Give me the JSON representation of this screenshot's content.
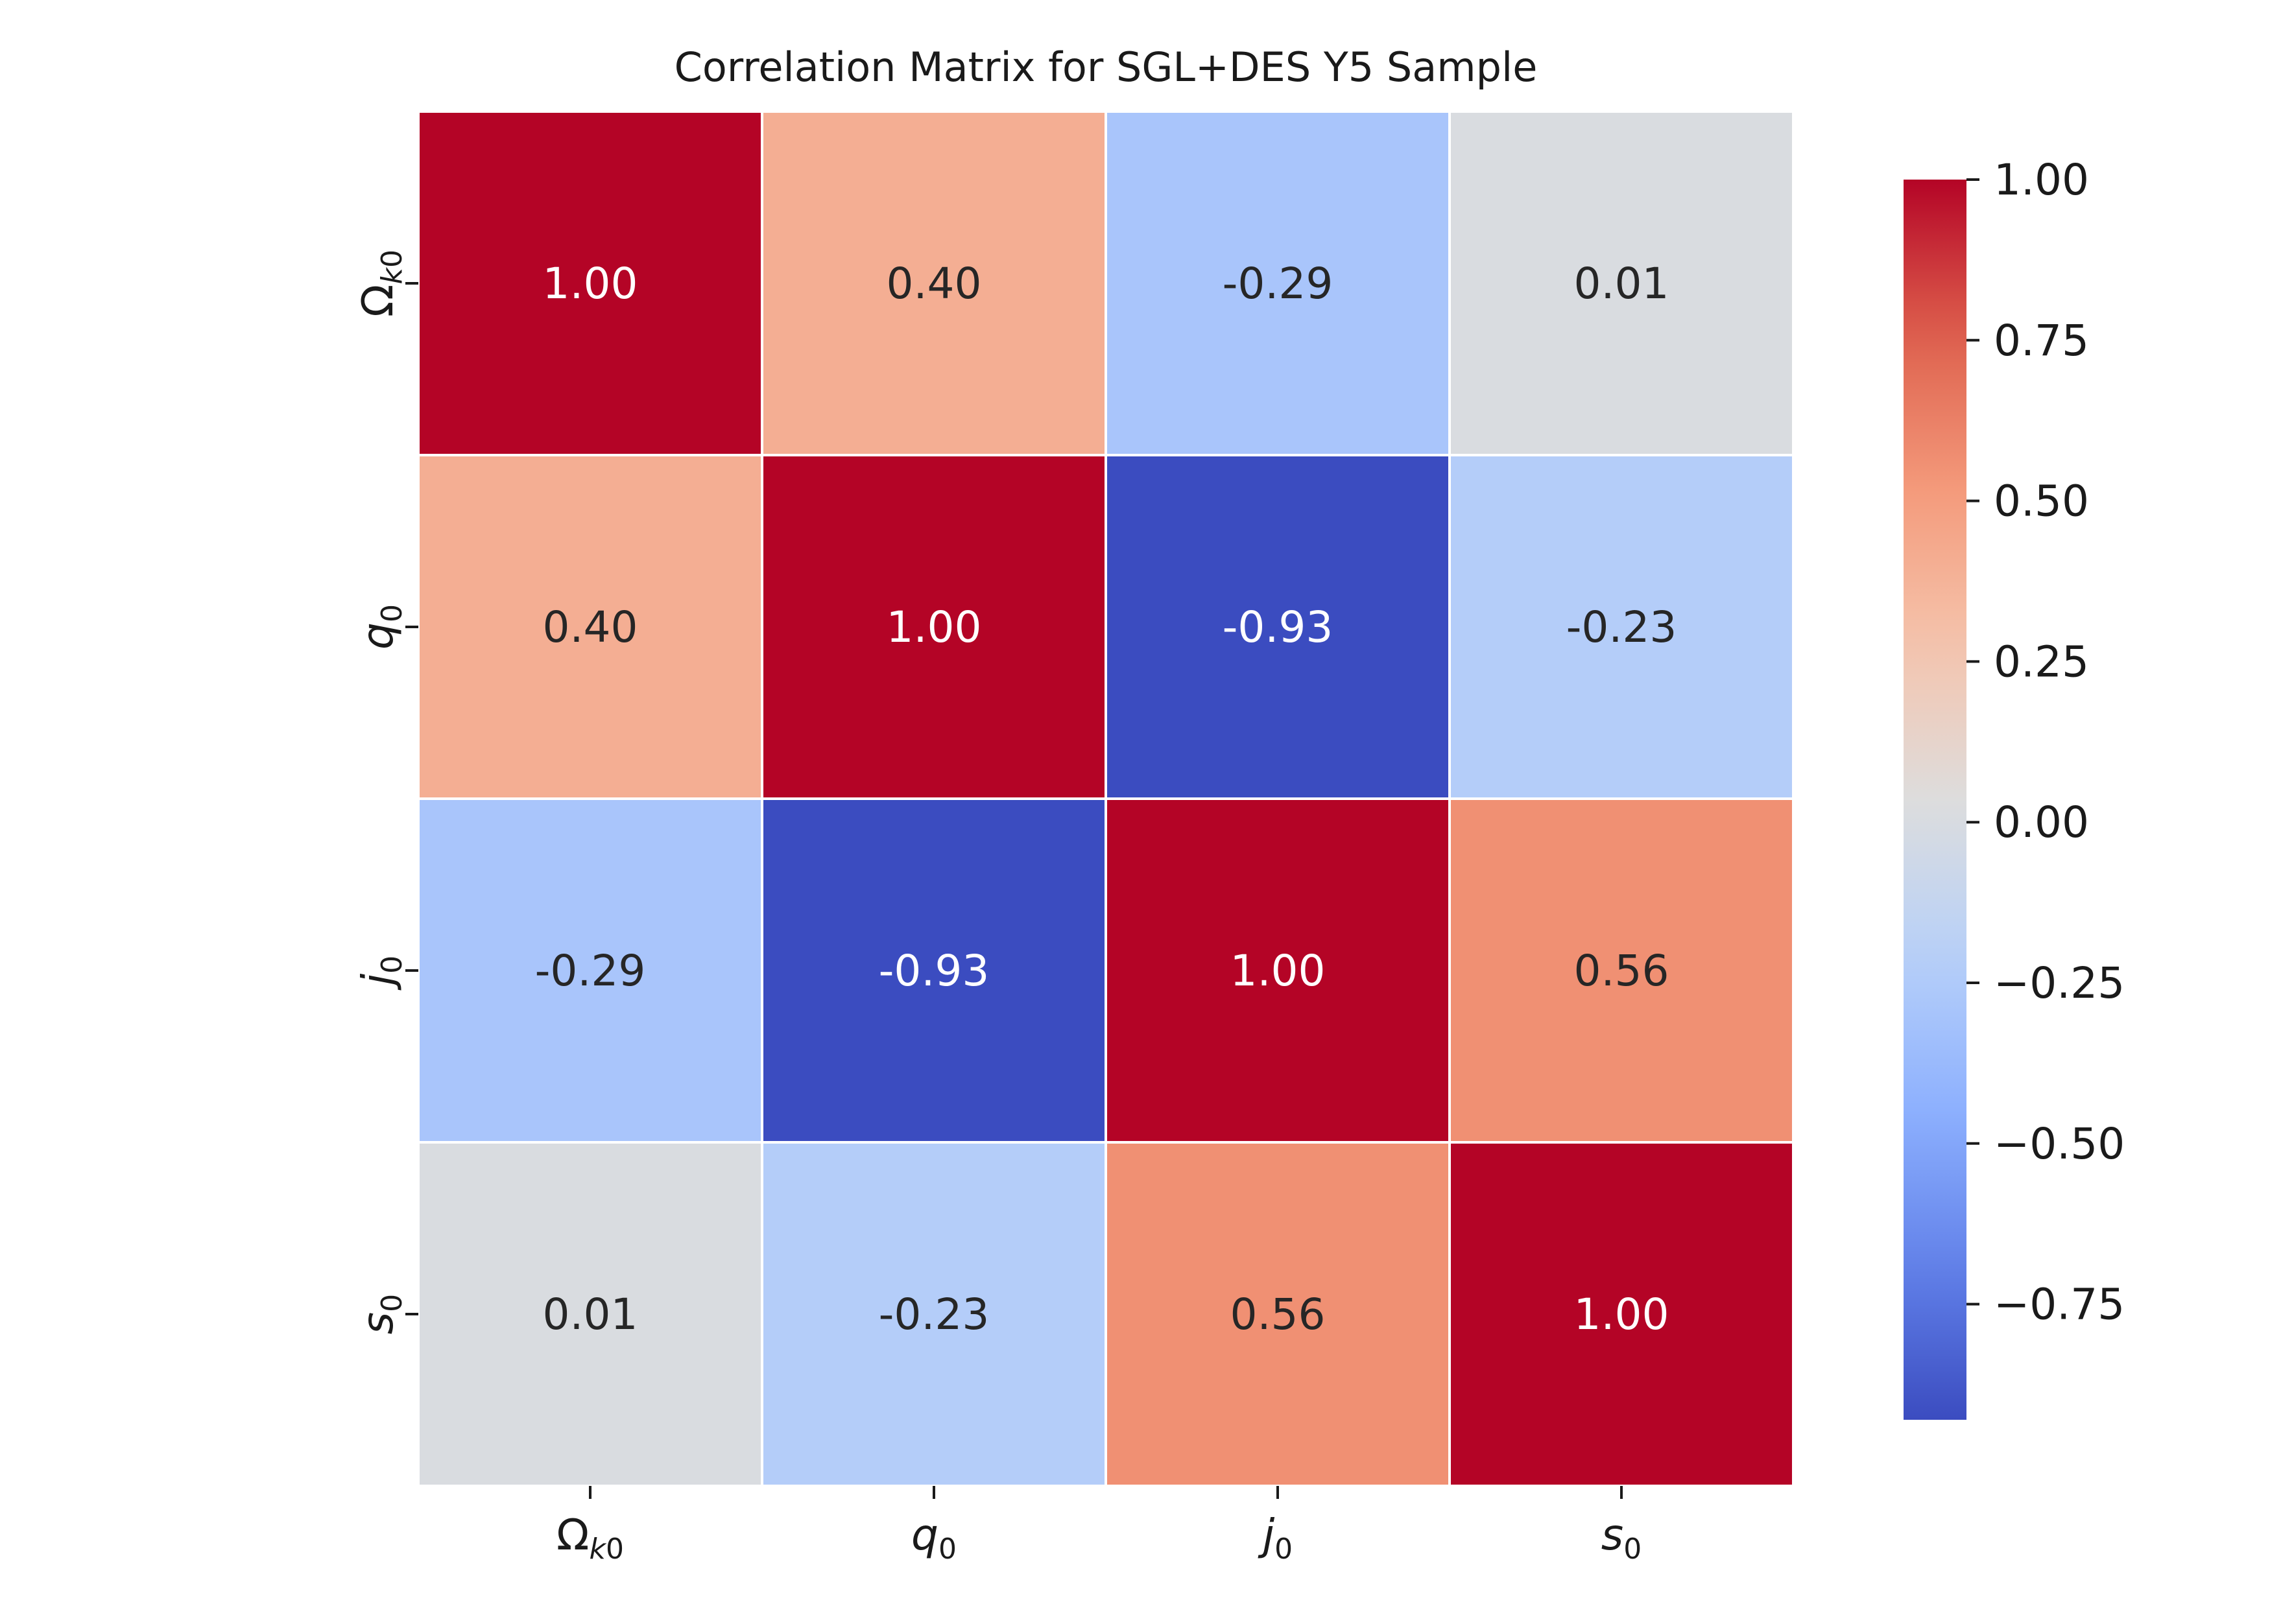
{
  "chart_data": {
    "type": "heatmap",
    "title": "Correlation Matrix for SGL+DES Y5 Sample",
    "xlabel": "",
    "ylabel": "",
    "labels": [
      {
        "base": "Ω",
        "sub": "k0"
      },
      {
        "base": "q",
        "sub": "0"
      },
      {
        "base": "j",
        "sub": "0"
      },
      {
        "base": "s",
        "sub": "0"
      }
    ],
    "matrix": [
      [
        1.0,
        0.4,
        -0.29,
        0.01
      ],
      [
        0.4,
        1.0,
        -0.93,
        -0.23
      ],
      [
        -0.29,
        -0.93,
        1.0,
        0.56
      ],
      [
        0.01,
        -0.23,
        0.56,
        1.0
      ]
    ],
    "cell_labels": [
      [
        "1.00",
        "0.40",
        "-0.29",
        "0.01"
      ],
      [
        "0.40",
        "1.00",
        "-0.93",
        "-0.23"
      ],
      [
        "-0.29",
        "-0.93",
        "1.00",
        "0.56"
      ],
      [
        "0.01",
        "-0.23",
        "0.56",
        "1.00"
      ]
    ],
    "colormap": "coolwarm",
    "vmin": -0.93,
    "vmax": 1.0,
    "colorbar": {
      "location": "right",
      "ticks": [
        1.0,
        0.75,
        0.5,
        0.25,
        0.0,
        -0.25,
        -0.5,
        -0.75
      ],
      "tick_labels": [
        "1.00",
        "0.75",
        "0.50",
        "0.25",
        "0.00",
        "−0.25",
        "−0.50",
        "−0.75"
      ]
    },
    "grid_line_color": "#ffffff"
  }
}
